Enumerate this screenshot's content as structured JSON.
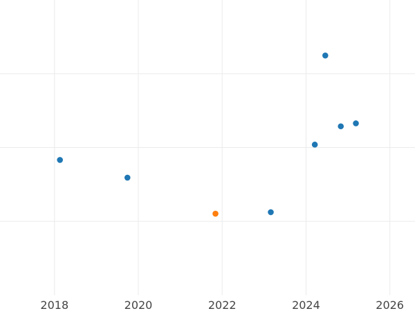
{
  "chart_data": {
    "type": "scatter",
    "title": "",
    "xlabel": "",
    "ylabel": "",
    "xlim": [
      "2016.7",
      "2026.6"
    ],
    "ylim": [
      0,
      1
    ],
    "grid": true,
    "legend": "none",
    "x_ticks": [
      "2018",
      "2020",
      "2022",
      "2024",
      "2026"
    ],
    "series": [
      {
        "color": "#1f77b4",
        "points": [
          {
            "x": "2018.13",
            "y": 0.458
          },
          {
            "x": "2019.74",
            "y": 0.398
          },
          {
            "x": "2023.16",
            "y": 0.281
          },
          {
            "x": "2024.21",
            "y": 0.51
          },
          {
            "x": "2024.46",
            "y": 0.812
          },
          {
            "x": "2024.83",
            "y": 0.572
          },
          {
            "x": "2025.19",
            "y": 0.582
          }
        ]
      },
      {
        "color": "#ff7f0e",
        "points": [
          {
            "x": "2021.84",
            "y": 0.276
          }
        ]
      }
    ]
  }
}
